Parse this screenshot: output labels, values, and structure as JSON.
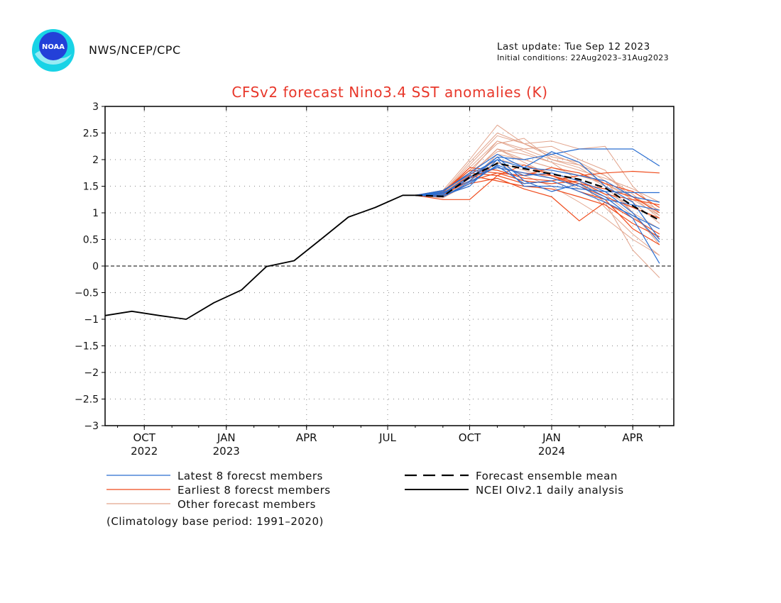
{
  "header": {
    "agency": "NWS/NCEP/CPC",
    "last_update": "Last update: Tue Sep 12 2023",
    "initial_conditions": "Initial conditions: 22Aug2023–31Aug2023",
    "logo_text": "NOAA"
  },
  "footnote": "(Climatology base period: 1991–2020)",
  "colors": {
    "title": "#e8372a",
    "latest": "#2a6ed1",
    "earliest": "#ef4b1c",
    "other": "#e2a48c",
    "mean": "#000000",
    "analysis": "#000000",
    "logo_outer": "#19d3e6",
    "logo_inner": "#2340d8"
  },
  "chart_data": {
    "type": "line",
    "title": "CFSv2 forecast Nino3.4 SST anomalies (K)",
    "ylim": [
      -3,
      3
    ],
    "y_ticks": [
      "3",
      "2.5",
      "2",
      "1.5",
      "1",
      "0.5",
      "0",
      "−0.5",
      "−1",
      "−1.5",
      "−2",
      "−2.5",
      "−3"
    ],
    "xlim": [
      "2022-09-01",
      "2024-05-31"
    ],
    "x_ticks": [
      {
        "date": "2022-10-15",
        "label": "OCT",
        "year": "2022"
      },
      {
        "date": "2023-01-15",
        "label": "JAN",
        "year": "2023"
      },
      {
        "date": "2023-04-15",
        "label": "APR",
        "year": ""
      },
      {
        "date": "2023-07-15",
        "label": "JUL",
        "year": ""
      },
      {
        "date": "2023-10-15",
        "label": "OCT",
        "year": ""
      },
      {
        "date": "2024-01-15",
        "label": "JAN",
        "year": "2024"
      },
      {
        "date": "2024-04-15",
        "label": "APR",
        "year": ""
      }
    ],
    "grid": true,
    "legend": [
      {
        "label": "Latest 8 forecst members",
        "style": "latest"
      },
      {
        "label": "Earliest 8 forecst members",
        "style": "earliest"
      },
      {
        "label": "Other forecast members",
        "style": "other"
      },
      {
        "label": "Forecast ensemble mean",
        "style": "mean"
      },
      {
        "label": "NCEI OIv2.1 daily analysis",
        "style": "analysis"
      }
    ],
    "forecast_dates": [
      "2023-08-15",
      "2023-09-15",
      "2023-10-15",
      "2023-11-15",
      "2023-12-15",
      "2024-01-15",
      "2024-02-15",
      "2024-03-15",
      "2024-04-15",
      "2024-05-15"
    ],
    "series": [
      {
        "name": "NCEI OIv2.1 daily analysis",
        "style": "analysis",
        "x": [
          "2022-09-01",
          "2022-10-01",
          "2022-11-01",
          "2022-12-01",
          "2023-01-01",
          "2023-02-01",
          "2023-03-01",
          "2023-04-01",
          "2023-05-01",
          "2023-06-01",
          "2023-07-01",
          "2023-08-01",
          "2023-08-15"
        ],
        "y": [
          -0.93,
          -0.85,
          -0.93,
          -1.0,
          -0.69,
          -0.45,
          -0.01,
          0.1,
          0.5,
          0.92,
          1.1,
          1.33,
          1.33
        ]
      },
      {
        "name": "Forecast ensemble mean",
        "style": "mean",
        "x_ref": "forecast_dates",
        "y": [
          1.33,
          1.31,
          1.67,
          1.93,
          1.83,
          1.73,
          1.63,
          1.47,
          1.13,
          0.86
        ]
      },
      {
        "style": "latest",
        "x_ref": "forecast_dates",
        "y": [
          1.33,
          1.35,
          1.65,
          2.05,
          2.0,
          2.1,
          2.2,
          2.2,
          2.2,
          1.88
        ]
      },
      {
        "style": "latest",
        "x_ref": "forecast_dates",
        "y": [
          1.33,
          1.4,
          1.75,
          2.1,
          1.85,
          2.15,
          1.95,
          1.5,
          1.2,
          0.5
        ]
      },
      {
        "style": "latest",
        "x_ref": "forecast_dates",
        "y": [
          1.33,
          1.3,
          1.55,
          1.9,
          1.7,
          1.75,
          1.6,
          1.4,
          1.38,
          1.38
        ]
      },
      {
        "style": "latest",
        "x_ref": "forecast_dates",
        "y": [
          1.33,
          1.38,
          1.6,
          2.05,
          1.6,
          1.4,
          1.55,
          1.3,
          0.9,
          0.05
        ]
      },
      {
        "style": "latest",
        "x_ref": "forecast_dates",
        "y": [
          1.33,
          1.33,
          1.5,
          2.0,
          1.5,
          1.5,
          1.45,
          1.4,
          1.0,
          0.45
        ]
      },
      {
        "style": "latest",
        "x_ref": "forecast_dates",
        "y": [
          1.33,
          1.36,
          1.68,
          1.85,
          1.75,
          1.65,
          1.5,
          1.25,
          1.15,
          1.05
        ]
      },
      {
        "style": "latest",
        "x_ref": "forecast_dates",
        "y": [
          1.33,
          1.42,
          1.72,
          2.0,
          1.85,
          1.8,
          1.7,
          1.6,
          1.3,
          1.2
        ]
      },
      {
        "style": "latest",
        "x_ref": "forecast_dates",
        "y": [
          1.33,
          1.3,
          1.58,
          1.88,
          1.55,
          1.6,
          1.4,
          1.2,
          0.95,
          0.7
        ]
      },
      {
        "style": "earliest",
        "x_ref": "forecast_dates",
        "y": [
          1.33,
          1.25,
          1.25,
          1.7,
          1.55,
          1.6,
          1.7,
          1.75,
          1.78,
          1.75
        ]
      },
      {
        "style": "earliest",
        "x_ref": "forecast_dates",
        "y": [
          1.33,
          1.38,
          1.85,
          1.8,
          1.65,
          1.6,
          1.4,
          1.25,
          0.7,
          0.4
        ]
      },
      {
        "style": "earliest",
        "x_ref": "forecast_dates",
        "y": [
          1.33,
          1.42,
          1.75,
          1.7,
          1.9,
          1.7,
          1.5,
          1.3,
          1.1,
          0.9
        ]
      },
      {
        "style": "earliest",
        "x_ref": "forecast_dates",
        "y": [
          1.33,
          1.35,
          1.6,
          1.75,
          1.6,
          1.55,
          1.6,
          1.35,
          1.25,
          1.15
        ]
      },
      {
        "style": "earliest",
        "x_ref": "forecast_dates",
        "y": [
          1.33,
          1.3,
          1.55,
          1.65,
          1.45,
          1.3,
          0.85,
          1.2,
          0.9,
          0.6
        ]
      },
      {
        "style": "earliest",
        "x_ref": "forecast_dates",
        "y": [
          1.33,
          1.4,
          1.8,
          1.75,
          1.7,
          1.85,
          1.75,
          1.55,
          1.4,
          1.1
        ]
      },
      {
        "style": "earliest",
        "x_ref": "forecast_dates",
        "y": [
          1.33,
          1.36,
          1.7,
          1.6,
          1.5,
          1.45,
          1.3,
          1.15,
          0.8,
          0.55
        ]
      },
      {
        "style": "earliest",
        "x_ref": "forecast_dates",
        "y": [
          1.33,
          1.32,
          1.65,
          1.85,
          1.75,
          1.7,
          1.55,
          1.45,
          1.3,
          1.0
        ]
      },
      {
        "style": "other",
        "x_ref": "forecast_dates",
        "y": [
          1.33,
          1.38,
          1.9,
          2.45,
          2.3,
          2.05,
          1.95,
          1.7,
          1.3,
          0.9
        ]
      },
      {
        "style": "other",
        "x_ref": "forecast_dates",
        "y": [
          1.33,
          1.42,
          2.0,
          2.65,
          2.3,
          2.35,
          2.2,
          2.25,
          1.5,
          1.0
        ]
      },
      {
        "style": "other",
        "x_ref": "forecast_dates",
        "y": [
          1.33,
          1.3,
          1.7,
          2.2,
          2.1,
          1.95,
          1.6,
          1.1,
          0.6,
          0.2
        ]
      },
      {
        "style": "other",
        "x_ref": "forecast_dates",
        "y": [
          1.33,
          1.35,
          1.75,
          2.35,
          2.2,
          2.25,
          2.0,
          1.8,
          1.2,
          0.8
        ]
      },
      {
        "style": "other",
        "x_ref": "forecast_dates",
        "y": [
          1.33,
          1.34,
          1.6,
          2.1,
          2.0,
          1.85,
          1.75,
          1.5,
          1.0,
          0.4
        ]
      },
      {
        "style": "other",
        "x_ref": "forecast_dates",
        "y": [
          1.33,
          1.31,
          1.65,
          2.0,
          1.9,
          1.75,
          1.55,
          1.2,
          0.3,
          -0.22
        ]
      },
      {
        "style": "other",
        "x_ref": "forecast_dates",
        "y": [
          1.33,
          1.36,
          1.8,
          2.3,
          2.4,
          2.0,
          1.9,
          1.6,
          1.0,
          0.7
        ]
      },
      {
        "style": "other",
        "x_ref": "forecast_dates",
        "y": [
          1.33,
          1.4,
          1.7,
          2.2,
          1.95,
          1.7,
          1.45,
          1.4,
          1.1,
          0.9
        ]
      },
      {
        "style": "other",
        "x_ref": "forecast_dates",
        "y": [
          1.33,
          1.28,
          1.55,
          1.95,
          1.8,
          1.65,
          1.55,
          1.35,
          0.95,
          0.5
        ]
      },
      {
        "style": "other",
        "x_ref": "forecast_dates",
        "y": [
          1.33,
          1.37,
          1.85,
          2.35,
          2.15,
          1.95,
          1.8,
          1.65,
          1.45,
          1.2
        ]
      },
      {
        "style": "other",
        "x_ref": "forecast_dates",
        "y": [
          1.33,
          1.33,
          1.75,
          2.15,
          2.2,
          2.0,
          1.85,
          1.55,
          1.3,
          1.05
        ]
      },
      {
        "style": "other",
        "x_ref": "forecast_dates",
        "y": [
          1.33,
          1.39,
          1.95,
          2.5,
          2.3,
          2.1,
          1.9,
          1.7,
          1.35,
          0.95
        ]
      },
      {
        "style": "other",
        "x_ref": "forecast_dates",
        "y": [
          1.33,
          1.32,
          1.6,
          1.95,
          1.7,
          1.5,
          1.2,
          0.9,
          0.5,
          0.2
        ]
      },
      {
        "style": "other",
        "x_ref": "forecast_dates",
        "y": [
          1.33,
          1.35,
          1.7,
          2.2,
          2.0,
          1.85,
          1.7,
          1.55,
          1.25,
          0.95
        ]
      }
    ]
  }
}
